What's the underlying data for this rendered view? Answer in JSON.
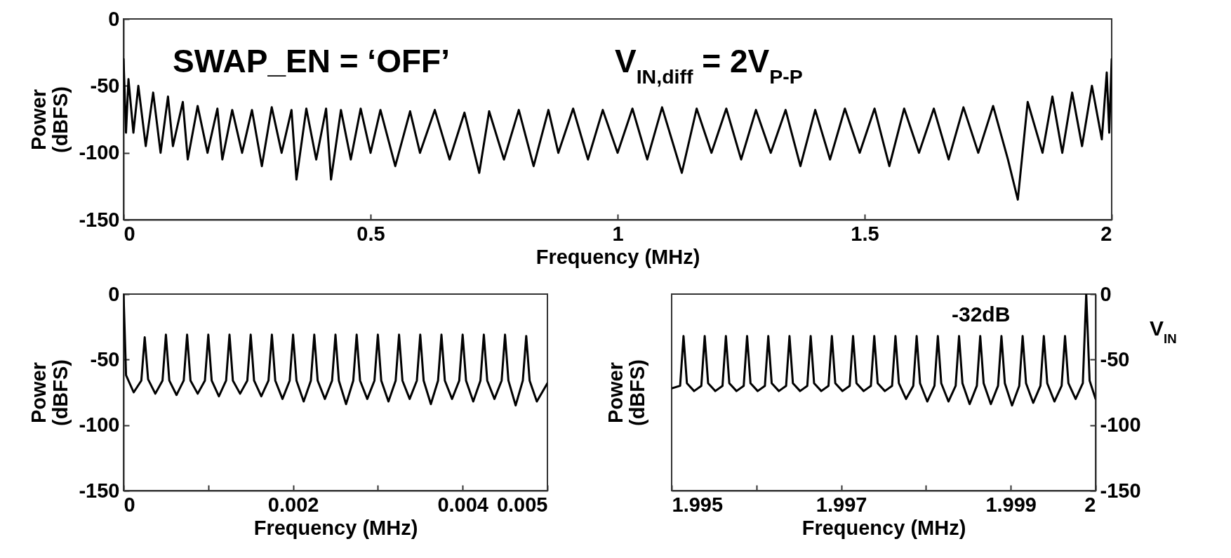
{
  "chart_data": [
    {
      "type": "line",
      "xlabel": "Frequency (MHz)",
      "ylabel": "Power (dBFS)",
      "xlim": [
        0,
        2
      ],
      "xticks": [
        0,
        0.5,
        1,
        1.5,
        2
      ],
      "ylim": [
        -150,
        0
      ],
      "yticks": [
        -150,
        -100,
        -50,
        0
      ],
      "annotations": [
        "SWAP_EN = ‘OFF’",
        "V$_{IN,diff}$ = 2V$_{P-P}$"
      ],
      "x": [
        0,
        0.005,
        0.01,
        0.02,
        0.03,
        0.045,
        0.06,
        0.075,
        0.09,
        0.1,
        0.12,
        0.13,
        0.15,
        0.17,
        0.19,
        0.2,
        0.22,
        0.24,
        0.26,
        0.28,
        0.3,
        0.32,
        0.34,
        0.35,
        0.37,
        0.39,
        0.41,
        0.42,
        0.44,
        0.46,
        0.48,
        0.5,
        0.52,
        0.55,
        0.58,
        0.6,
        0.63,
        0.66,
        0.69,
        0.72,
        0.74,
        0.77,
        0.8,
        0.83,
        0.86,
        0.88,
        0.91,
        0.94,
        0.97,
        1.0,
        1.03,
        1.06,
        1.09,
        1.13,
        1.16,
        1.19,
        1.22,
        1.25,
        1.28,
        1.31,
        1.34,
        1.37,
        1.4,
        1.43,
        1.46,
        1.49,
        1.52,
        1.55,
        1.58,
        1.61,
        1.64,
        1.67,
        1.7,
        1.73,
        1.76,
        1.79,
        1.81,
        1.83,
        1.86,
        1.88,
        1.9,
        1.92,
        1.94,
        1.96,
        1.98,
        1.99,
        1.995,
        2
      ],
      "series": [
        {
          "color": "#000000",
          "values": [
            -30,
            -85,
            -45,
            -85,
            -50,
            -95,
            -55,
            -100,
            -58,
            -95,
            -62,
            -105,
            -65,
            -100,
            -67,
            -105,
            -68,
            -100,
            -68,
            -110,
            -66,
            -100,
            -68,
            -120,
            -67,
            -105,
            -67,
            -120,
            -68,
            -105,
            -67,
            -100,
            -68,
            -110,
            -69,
            -100,
            -68,
            -105,
            -70,
            -115,
            -69,
            -105,
            -68,
            -110,
            -68,
            -100,
            -67,
            -105,
            -68,
            -100,
            -67,
            -105,
            -66,
            -115,
            -67,
            -100,
            -67,
            -105,
            -68,
            -100,
            -68,
            -110,
            -68,
            -105,
            -67,
            -100,
            -67,
            -110,
            -67,
            -100,
            -67,
            -105,
            -66,
            -100,
            -65,
            -105,
            -135,
            -62,
            -100,
            -58,
            -100,
            -55,
            -95,
            -50,
            -90,
            -40,
            -85,
            -30
          ]
        }
      ]
    },
    {
      "type": "line",
      "xlabel": "Frequency (MHz)",
      "ylabel": "Power (dBFS)",
      "xlim": [
        0,
        0.005
      ],
      "xticks": [
        0,
        {
          "value": 0.001,
          "label": null
        },
        0.002,
        {
          "value": 0.003,
          "label": null
        },
        0.004,
        0.005
      ],
      "ylim": [
        -150,
        0
      ],
      "yticks": [
        -150,
        -100,
        -50,
        0
      ],
      "x": [
        0,
        3e-05,
        0.00012,
        0.00021,
        0.00025,
        0.00029,
        0.000375,
        0.00046,
        0.0005,
        0.00054,
        0.000625,
        0.00071,
        0.00075,
        0.00079,
        0.000875,
        0.00096,
        0.001,
        0.00104,
        0.001125,
        0.00121,
        0.00125,
        0.00129,
        0.001375,
        0.00146,
        0.0015,
        0.00154,
        0.001625,
        0.00171,
        0.00175,
        0.00179,
        0.001875,
        0.00196,
        0.002,
        0.00204,
        0.002125,
        0.00221,
        0.00225,
        0.00229,
        0.002375,
        0.00246,
        0.0025,
        0.00254,
        0.002625,
        0.00271,
        0.00275,
        0.00279,
        0.002875,
        0.00296,
        0.003,
        0.00304,
        0.003125,
        0.00321,
        0.00325,
        0.00329,
        0.003375,
        0.00346,
        0.0035,
        0.00354,
        0.003625,
        0.00371,
        0.00375,
        0.00379,
        0.003875,
        0.00396,
        0.004,
        0.00404,
        0.004125,
        0.00421,
        0.00425,
        0.00429,
        0.004375,
        0.00446,
        0.0045,
        0.00454,
        0.004625,
        0.00471,
        0.00475,
        0.00479,
        0.004875,
        0.005
      ],
      "series": [
        {
          "color": "#000000",
          "values": [
            0,
            -62,
            -75,
            -66,
            -33,
            -65,
            -76,
            -66,
            -31,
            -66,
            -77,
            -66,
            -31,
            -66,
            -76,
            -66,
            -31,
            -66,
            -78,
            -66,
            -31,
            -66,
            -76,
            -66,
            -31,
            -66,
            -78,
            -66,
            -31,
            -66,
            -80,
            -66,
            -31,
            -66,
            -82,
            -66,
            -31,
            -66,
            -80,
            -66,
            -31,
            -66,
            -84,
            -66,
            -31,
            -66,
            -80,
            -66,
            -31,
            -66,
            -82,
            -66,
            -31,
            -66,
            -80,
            -66,
            -31,
            -66,
            -84,
            -66,
            -31,
            -66,
            -80,
            -66,
            -31,
            -66,
            -82,
            -66,
            -31,
            -66,
            -80,
            -66,
            -31,
            -66,
            -85,
            -66,
            -32,
            -66,
            -82,
            -68
          ]
        }
      ]
    },
    {
      "type": "line",
      "xlabel": "Frequency (MHz)",
      "ylabel": "Power (dBFS)",
      "xlim": [
        1.995,
        2
      ],
      "xticks": [
        1.995,
        {
          "value": 1.996,
          "label": null
        },
        1.997,
        {
          "value": 1.998,
          "label": null
        },
        1.999,
        2
      ],
      "y2lim": [
        -150,
        0
      ],
      "y2ticks": [
        -150,
        -100,
        -50,
        0
      ],
      "annotations": [
        "-32dB",
        "V$_{IN}$"
      ],
      "x": [
        1.995,
        1.9951,
        1.99514,
        1.99518,
        1.995265,
        1.99535,
        1.99539,
        1.99543,
        1.995515,
        1.9956,
        1.99564,
        1.99568,
        1.995765,
        1.99585,
        1.99589,
        1.99593,
        1.996015,
        1.9961,
        1.99614,
        1.99618,
        1.996265,
        1.99635,
        1.99639,
        1.99643,
        1.996515,
        1.9966,
        1.99664,
        1.99668,
        1.996765,
        1.99685,
        1.99689,
        1.99693,
        1.997015,
        1.9971,
        1.99714,
        1.99718,
        1.997265,
        1.99735,
        1.99739,
        1.99743,
        1.997515,
        1.9976,
        1.99764,
        1.99768,
        1.997765,
        1.99785,
        1.99789,
        1.99793,
        1.998015,
        1.9981,
        1.99814,
        1.99818,
        1.998265,
        1.99835,
        1.99839,
        1.99843,
        1.998515,
        1.9986,
        1.99864,
        1.99868,
        1.998765,
        1.99885,
        1.99889,
        1.99893,
        1.999015,
        1.9991,
        1.99914,
        1.99918,
        1.999265,
        1.99935,
        1.99939,
        1.99943,
        1.999515,
        1.9996,
        1.99964,
        1.99968,
        1.999765,
        1.99985,
        1.99989,
        1.99993,
        2
      ],
      "series": [
        {
          "color": "#000000",
          "axis": "y2",
          "values": [
            -72,
            -70,
            -32,
            -68,
            -74,
            -70,
            -32,
            -68,
            -74,
            -70,
            -32,
            -68,
            -74,
            -70,
            -32,
            -68,
            -74,
            -70,
            -32,
            -68,
            -74,
            -70,
            -32,
            -68,
            -74,
            -70,
            -32,
            -68,
            -74,
            -70,
            -32,
            -68,
            -74,
            -70,
            -32,
            -68,
            -74,
            -70,
            -32,
            -68,
            -74,
            -70,
            -32,
            -68,
            -80,
            -70,
            -32,
            -68,
            -82,
            -70,
            -32,
            -68,
            -82,
            -70,
            -32,
            -68,
            -84,
            -70,
            -32,
            -68,
            -84,
            -70,
            -32,
            -68,
            -85,
            -70,
            -32,
            -68,
            -83,
            -70,
            -32,
            -68,
            -82,
            -70,
            -32,
            -68,
            -80,
            -68,
            0,
            -66,
            -80
          ]
        }
      ]
    }
  ]
}
